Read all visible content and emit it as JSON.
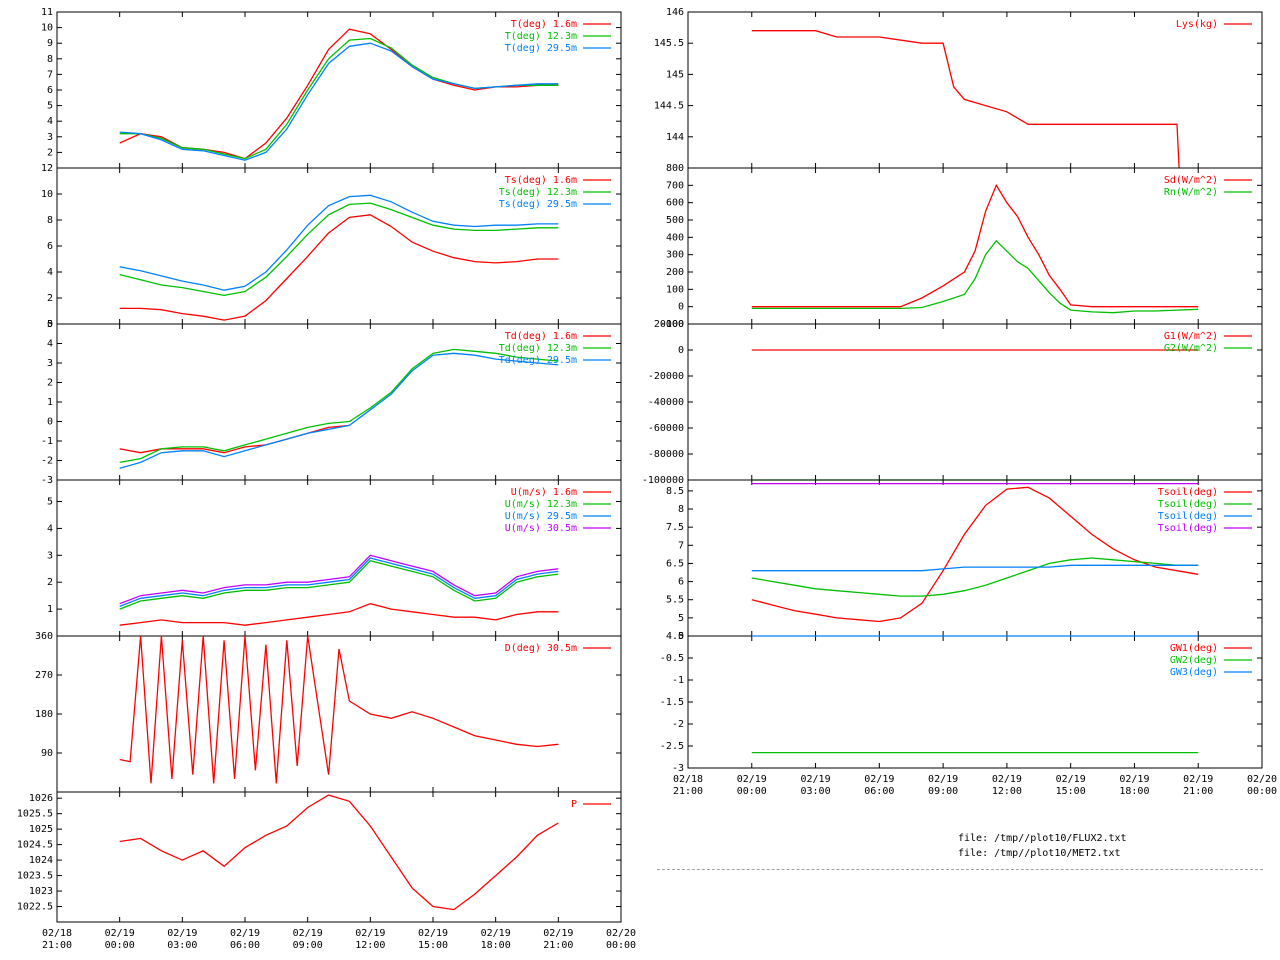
{
  "colors": {
    "red": "#ff0000",
    "green": "#00c000",
    "blue": "#0080ff",
    "magenta": "#c000ff",
    "axis": "#000000"
  },
  "x_tick_labels": [
    {
      "date": "02/18",
      "time": "21:00"
    },
    {
      "date": "02/19",
      "time": "00:00"
    },
    {
      "date": "02/19",
      "time": "03:00"
    },
    {
      "date": "02/19",
      "time": "06:00"
    },
    {
      "date": "02/19",
      "time": "09:00"
    },
    {
      "date": "02/19",
      "time": "12:00"
    },
    {
      "date": "02/19",
      "time": "15:00"
    },
    {
      "date": "02/19",
      "time": "18:00"
    },
    {
      "date": "02/19",
      "time": "21:00"
    },
    {
      "date": "02/20",
      "time": "00:00"
    }
  ],
  "files": [
    "file: /tmp//plot10/FLUX2.txt",
    "file: /tmp//plot10/MET2.txt"
  ],
  "chart_data": [
    {
      "id": "air-temp",
      "type": "line",
      "xrange": [
        "02/18 21:00",
        "02/20 00:00"
      ],
      "yrange": [
        1,
        11
      ],
      "yticks": [
        2,
        3,
        4,
        5,
        6,
        7,
        8,
        9,
        10,
        11
      ],
      "x": [
        0,
        1,
        2,
        3,
        4,
        5,
        6,
        7,
        8,
        9,
        10,
        11,
        12,
        13,
        14,
        15,
        16,
        17,
        18,
        19,
        20,
        21,
        22,
        23,
        24
      ],
      "series": [
        {
          "name": "T(deg)  1.6m",
          "color": "red",
          "values": [
            null,
            null,
            null,
            2.6,
            3.2,
            3.0,
            2.3,
            2.2,
            2.0,
            1.6,
            2.6,
            4.2,
            6.3,
            8.6,
            9.9,
            9.6,
            8.6,
            7.5,
            6.7,
            6.3,
            6.0,
            6.2,
            6.2,
            6.3,
            6.3
          ]
        },
        {
          "name": "T(deg) 12.3m",
          "color": "green",
          "values": [
            null,
            null,
            null,
            3.2,
            3.2,
            2.9,
            2.3,
            2.2,
            1.9,
            1.6,
            2.2,
            3.8,
            6.0,
            8.0,
            9.2,
            9.3,
            8.7,
            7.6,
            6.8,
            6.4,
            6.1,
            6.2,
            6.3,
            6.3,
            6.3
          ]
        },
        {
          "name": "T(deg) 29.5m",
          "color": "blue",
          "values": [
            null,
            null,
            null,
            3.3,
            3.2,
            2.8,
            2.2,
            2.1,
            1.8,
            1.5,
            2.0,
            3.5,
            5.7,
            7.7,
            8.8,
            9.0,
            8.5,
            7.5,
            6.7,
            6.4,
            6.1,
            6.2,
            6.3,
            6.4,
            6.4
          ]
        }
      ]
    },
    {
      "id": "sonic-temp",
      "type": "line",
      "xrange": [
        "02/18 21:00",
        "02/20 00:00"
      ],
      "yrange": [
        0,
        12
      ],
      "yticks": [
        0,
        2,
        4,
        6,
        8,
        10,
        12
      ],
      "x": [
        0,
        1,
        2,
        3,
        4,
        5,
        6,
        7,
        8,
        9,
        10,
        11,
        12,
        13,
        14,
        15,
        16,
        17,
        18,
        19,
        20,
        21,
        22,
        23,
        24
      ],
      "series": [
        {
          "name": "Ts(deg)  1.6m",
          "color": "red",
          "values": [
            null,
            null,
            null,
            1.2,
            1.2,
            1.1,
            0.8,
            0.6,
            0.3,
            0.6,
            1.8,
            3.5,
            5.2,
            7.0,
            8.2,
            8.4,
            7.5,
            6.3,
            5.6,
            5.1,
            4.8,
            4.7,
            4.8,
            5.0,
            5.0
          ]
        },
        {
          "name": "Ts(deg) 12.3m",
          "color": "green",
          "values": [
            null,
            null,
            null,
            3.8,
            3.4,
            3.0,
            2.8,
            2.5,
            2.2,
            2.5,
            3.6,
            5.2,
            6.9,
            8.4,
            9.2,
            9.3,
            8.8,
            8.2,
            7.6,
            7.3,
            7.2,
            7.2,
            7.3,
            7.4,
            7.4
          ]
        },
        {
          "name": "Ts(deg) 29.5m",
          "color": "blue",
          "values": [
            null,
            null,
            null,
            4.4,
            4.1,
            3.7,
            3.3,
            3.0,
            2.6,
            2.9,
            4.0,
            5.7,
            7.6,
            9.1,
            9.8,
            9.9,
            9.4,
            8.6,
            7.9,
            7.6,
            7.5,
            7.6,
            7.6,
            7.7,
            7.7
          ]
        }
      ]
    },
    {
      "id": "dew-point",
      "type": "line",
      "xrange": [
        "02/18 21:00",
        "02/20 00:00"
      ],
      "yrange": [
        -3,
        5
      ],
      "yticks": [
        -3,
        -2,
        -1,
        0,
        1,
        2,
        3,
        4,
        5
      ],
      "x": [
        0,
        1,
        2,
        3,
        4,
        5,
        6,
        7,
        8,
        9,
        10,
        11,
        12,
        13,
        14,
        15,
        16,
        17,
        18,
        19,
        20,
        21,
        22,
        23,
        24
      ],
      "series": [
        {
          "name": "Td(deg)  1.6m",
          "color": "red",
          "values": [
            null,
            null,
            null,
            -1.4,
            -1.6,
            -1.4,
            -1.4,
            -1.4,
            -1.6,
            -1.3,
            -1.2,
            -0.9,
            -0.6,
            -0.3,
            -0.2,
            null,
            null,
            null,
            null,
            null,
            null,
            null,
            null,
            null,
            null
          ]
        },
        {
          "name": "Td(deg) 12.3m",
          "color": "green",
          "values": [
            null,
            null,
            null,
            -2.1,
            -1.9,
            -1.4,
            -1.3,
            -1.3,
            -1.5,
            -1.2,
            -0.9,
            -0.6,
            -0.3,
            -0.1,
            0.0,
            0.7,
            1.5,
            2.7,
            3.5,
            3.7,
            3.6,
            3.5,
            3.3,
            3.2,
            3.1
          ]
        },
        {
          "name": "Td(deg) 29.5m",
          "color": "blue",
          "values": [
            null,
            null,
            null,
            -2.4,
            -2.1,
            -1.6,
            -1.5,
            -1.5,
            -1.8,
            -1.5,
            -1.2,
            -0.9,
            -0.6,
            -0.4,
            -0.2,
            0.6,
            1.4,
            2.6,
            3.4,
            3.5,
            3.4,
            3.2,
            3.1,
            3.0,
            2.9
          ]
        }
      ]
    },
    {
      "id": "wind-speed",
      "type": "line",
      "xrange": [
        "02/18 21:00",
        "02/20 00:00"
      ],
      "yrange": [
        0,
        5.8
      ],
      "yticks": [
        1,
        2,
        3,
        4,
        5
      ],
      "x": [
        0,
        1,
        2,
        3,
        4,
        5,
        6,
        7,
        8,
        9,
        10,
        11,
        12,
        13,
        14,
        15,
        16,
        17,
        18,
        19,
        20,
        21,
        22,
        23,
        24
      ],
      "series": [
        {
          "name": "U(m/s)  1.6m",
          "color": "red",
          "values": [
            null,
            null,
            null,
            0.4,
            0.5,
            0.6,
            0.5,
            0.5,
            0.5,
            0.4,
            0.5,
            0.6,
            0.7,
            0.8,
            0.9,
            1.2,
            1.0,
            0.9,
            0.8,
            0.7,
            0.7,
            0.6,
            0.8,
            0.9,
            0.9
          ]
        },
        {
          "name": "U(m/s) 12.3m",
          "color": "green",
          "values": [
            null,
            null,
            null,
            1.0,
            1.3,
            1.4,
            1.5,
            1.4,
            1.6,
            1.7,
            1.7,
            1.8,
            1.8,
            1.9,
            2.0,
            2.8,
            2.6,
            2.4,
            2.2,
            1.7,
            1.3,
            1.4,
            2.0,
            2.2,
            2.3
          ]
        },
        {
          "name": "U(m/s) 29.5m",
          "color": "blue",
          "values": [
            null,
            null,
            null,
            1.1,
            1.4,
            1.5,
            1.6,
            1.5,
            1.7,
            1.8,
            1.8,
            1.9,
            1.9,
            2.0,
            2.1,
            2.9,
            2.7,
            2.5,
            2.3,
            1.8,
            1.4,
            1.5,
            2.1,
            2.3,
            2.4
          ]
        },
        {
          "name": "U(m/s) 30.5m",
          "color": "magenta",
          "values": [
            null,
            null,
            null,
            1.2,
            1.5,
            1.6,
            1.7,
            1.6,
            1.8,
            1.9,
            1.9,
            2.0,
            2.0,
            2.1,
            2.2,
            3.0,
            2.8,
            2.6,
            2.4,
            1.9,
            1.5,
            1.6,
            2.2,
            2.4,
            2.5
          ]
        }
      ]
    },
    {
      "id": "wind-dir",
      "type": "line",
      "xrange": [
        "02/18 21:00",
        "02/20 00:00"
      ],
      "yrange": [
        0,
        360
      ],
      "yticks": [
        90,
        180,
        270,
        360
      ],
      "x": [
        3,
        3.5,
        4,
        4.5,
        5,
        5.5,
        6,
        6.5,
        7,
        7.5,
        8,
        8.5,
        9,
        9.5,
        10,
        10.5,
        11,
        11.5,
        12,
        12.5,
        13,
        13.5,
        14,
        15,
        16,
        17,
        18,
        19,
        20,
        21,
        22,
        23,
        24
      ],
      "series": [
        {
          "name": "D(deg)  30.5m",
          "color": "red",
          "values": [
            75,
            70,
            360,
            20,
            360,
            30,
            350,
            40,
            360,
            20,
            350,
            30,
            360,
            50,
            340,
            20,
            350,
            60,
            360,
            200,
            40,
            330,
            210,
            180,
            170,
            185,
            170,
            150,
            130,
            120,
            110,
            105,
            110
          ]
        }
      ]
    },
    {
      "id": "pressure",
      "type": "line",
      "xrange": [
        "02/18 21:00",
        "02/20 00:00"
      ],
      "yrange": [
        1022,
        1026.2
      ],
      "yticks": [
        1022.5,
        1023,
        1023.5,
        1024,
        1024.5,
        1025,
        1025.5,
        1026
      ],
      "x": [
        0,
        1,
        2,
        3,
        4,
        5,
        6,
        7,
        8,
        9,
        10,
        11,
        12,
        13,
        14,
        15,
        16,
        17,
        18,
        19,
        20,
        21,
        22,
        23,
        24
      ],
      "series": [
        {
          "name": "P",
          "color": "red",
          "values": [
            null,
            null,
            null,
            1024.6,
            1024.7,
            1024.3,
            1024.0,
            1024.3,
            1023.8,
            1024.4,
            1024.8,
            1025.1,
            1025.7,
            1026.1,
            1025.9,
            1025.1,
            1024.1,
            1023.1,
            1022.5,
            1022.4,
            1022.9,
            1023.5,
            1024.1,
            1024.8,
            1025.2
          ]
        }
      ]
    },
    {
      "id": "snow-weight",
      "type": "line",
      "xrange": [
        "02/18 21:00",
        "02/20 00:00"
      ],
      "yrange": [
        143.5,
        146
      ],
      "yticks": [
        144,
        144.5,
        145,
        145.5,
        146
      ],
      "x": [
        3,
        6,
        7,
        9,
        11,
        12,
        12.5,
        13,
        14,
        15,
        15.5,
        16,
        17,
        18,
        19,
        20,
        21,
        22,
        23,
        23.1
      ],
      "series": [
        {
          "name": "Lys(kg)",
          "color": "red",
          "values": [
            145.7,
            145.7,
            145.6,
            145.6,
            145.5,
            145.5,
            144.8,
            144.6,
            144.5,
            144.4,
            144.3,
            144.2,
            144.2,
            144.2,
            144.2,
            144.2,
            144.2,
            144.2,
            144.2,
            143.5
          ]
        }
      ]
    },
    {
      "id": "radiation",
      "type": "line",
      "xrange": [
        "02/18 21:00",
        "02/20 00:00"
      ],
      "yrange": [
        -100,
        800
      ],
      "yticks": [
        -100,
        0,
        100,
        200,
        300,
        400,
        500,
        600,
        700,
        800
      ],
      "x": [
        3,
        6,
        9,
        10,
        11,
        12,
        13,
        13.5,
        14,
        14.5,
        15,
        15.5,
        16,
        16.5,
        17,
        17.5,
        18,
        19,
        20,
        21,
        22,
        23,
        24
      ],
      "series": [
        {
          "name": "Sd(W/m^2)",
          "color": "red",
          "values": [
            0,
            0,
            0,
            0,
            50,
            120,
            200,
            320,
            550,
            700,
            600,
            520,
            400,
            300,
            180,
            100,
            10,
            0,
            0,
            0,
            0,
            0,
            0
          ]
        },
        {
          "name": "Rn(W/m^2)",
          "color": "green",
          "values": [
            -10,
            -10,
            -10,
            -10,
            -5,
            30,
            70,
            160,
            300,
            380,
            320,
            260,
            220,
            150,
            80,
            20,
            -20,
            -30,
            -35,
            -25,
            -25,
            -20,
            -15
          ]
        }
      ]
    },
    {
      "id": "soil-heat-flux",
      "type": "line",
      "xrange": [
        "02/18 21:00",
        "02/20 00:00"
      ],
      "yrange": [
        -100000,
        20000
      ],
      "yticks": [
        -100000,
        -80000,
        -60000,
        -40000,
        -20000,
        0,
        20000
      ],
      "x": [
        3,
        24
      ],
      "series": [
        {
          "name": "G1(W/m^2)",
          "color": "red",
          "values": [
            0,
            0
          ]
        },
        {
          "name": "G2(W/m^2)",
          "color": "green",
          "values": [
            -100000,
            -100000
          ]
        }
      ]
    },
    {
      "id": "soil-temp",
      "type": "line",
      "xrange": [
        "02/18 21:00",
        "02/20 00:00"
      ],
      "yrange": [
        4.5,
        8.8
      ],
      "yticks": [
        4.5,
        5,
        5.5,
        6,
        6.5,
        7,
        7.5,
        8,
        8.5
      ],
      "x": [
        3,
        4,
        5,
        6,
        7,
        8,
        9,
        10,
        11,
        12,
        13,
        14,
        15,
        16,
        17,
        18,
        19,
        20,
        21,
        22,
        23,
        24
      ],
      "series": [
        {
          "name": "Tsoil(deg)",
          "color": "red",
          "values": [
            5.5,
            5.35,
            5.2,
            5.1,
            5.0,
            4.95,
            4.9,
            5.0,
            5.4,
            6.3,
            7.3,
            8.1,
            8.55,
            8.6,
            8.3,
            7.8,
            7.3,
            6.9,
            6.6,
            6.4,
            6.3,
            6.2
          ]
        },
        {
          "name": "Tsoil(deg)",
          "color": "green",
          "values": [
            6.1,
            6.0,
            5.9,
            5.8,
            5.75,
            5.7,
            5.65,
            5.6,
            5.6,
            5.65,
            5.75,
            5.9,
            6.1,
            6.3,
            6.5,
            6.6,
            6.65,
            6.6,
            6.55,
            6.5,
            6.45,
            6.45
          ]
        },
        {
          "name": "Tsoil(deg)",
          "color": "blue",
          "values": [
            6.3,
            6.3,
            6.3,
            6.3,
            6.3,
            6.3,
            6.3,
            6.3,
            6.3,
            6.35,
            6.4,
            6.4,
            6.4,
            6.4,
            6.4,
            6.45,
            6.45,
            6.45,
            6.45,
            6.45,
            6.45,
            6.45
          ]
        },
        {
          "name": "Tsoil(deg)",
          "color": "magenta",
          "values": [
            8.7,
            8.7,
            8.7,
            8.7,
            8.7,
            8.7,
            8.7,
            8.7,
            8.7,
            8.7,
            8.7,
            8.7,
            8.7,
            8.7,
            8.7,
            8.7,
            8.7,
            8.7,
            8.7,
            8.7,
            8.7,
            8.7
          ]
        }
      ]
    },
    {
      "id": "ground-water",
      "type": "line",
      "xrange": [
        "02/18 21:00",
        "02/20 00:00"
      ],
      "yrange": [
        -3,
        0
      ],
      "yticks": [
        -3,
        -2.5,
        -2,
        -1.5,
        -1,
        -0.5,
        0
      ],
      "x": [
        3,
        24
      ],
      "series": [
        {
          "name": "GW1(deg)",
          "color": "red",
          "values": [
            null,
            null
          ]
        },
        {
          "name": "GW2(deg)",
          "color": "green",
          "values": [
            -2.65,
            -2.65
          ]
        },
        {
          "name": "GW3(deg)",
          "color": "blue",
          "values": [
            0,
            0
          ]
        }
      ]
    }
  ]
}
